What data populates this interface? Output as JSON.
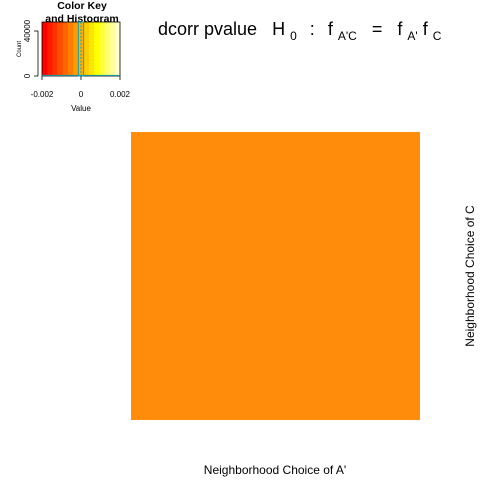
{
  "chart_data": {
    "type": "heatmap",
    "title": {
      "main": "dcorr pvalue",
      "h": "H",
      "h_sub": "0",
      "colon": ":",
      "f": "f",
      "lhs_sub": "A'C",
      "equals": "=",
      "rhs_sub1": "A'",
      "rhs_sub2": "C"
    },
    "xlabel": "Neighborhood Choice of A'",
    "ylabel": "Neighborhood Choice of C",
    "cells": [
      [
        0.0
      ]
    ],
    "cell_color": "#ff8c0a",
    "color_key": {
      "title_line1": "Color Key",
      "title_line2": "and Histogram",
      "xlabel": "Value",
      "ylabel": "Count",
      "x_ticks": [
        "-0.002",
        "0",
        "0.002"
      ],
      "x_range": [
        -0.002,
        0.002
      ],
      "y_ticks": [
        "0",
        "40000"
      ],
      "y_range": [
        0,
        48000
      ],
      "colors": [
        "#ff0000",
        "#ff1a00",
        "#ff3300",
        "#ff4d00",
        "#ff6600",
        "#ff8000",
        "#ff9900",
        "#ffb300",
        "#ffcc00",
        "#ffe600",
        "#ffff00",
        "#ffff33",
        "#ffff66",
        "#ffff99",
        "#ffffcc"
      ],
      "histogram_line_color": "#17a0a8",
      "marker_value": 0.0,
      "histogram_value": 0.0,
      "histogram_count": 48000
    }
  }
}
